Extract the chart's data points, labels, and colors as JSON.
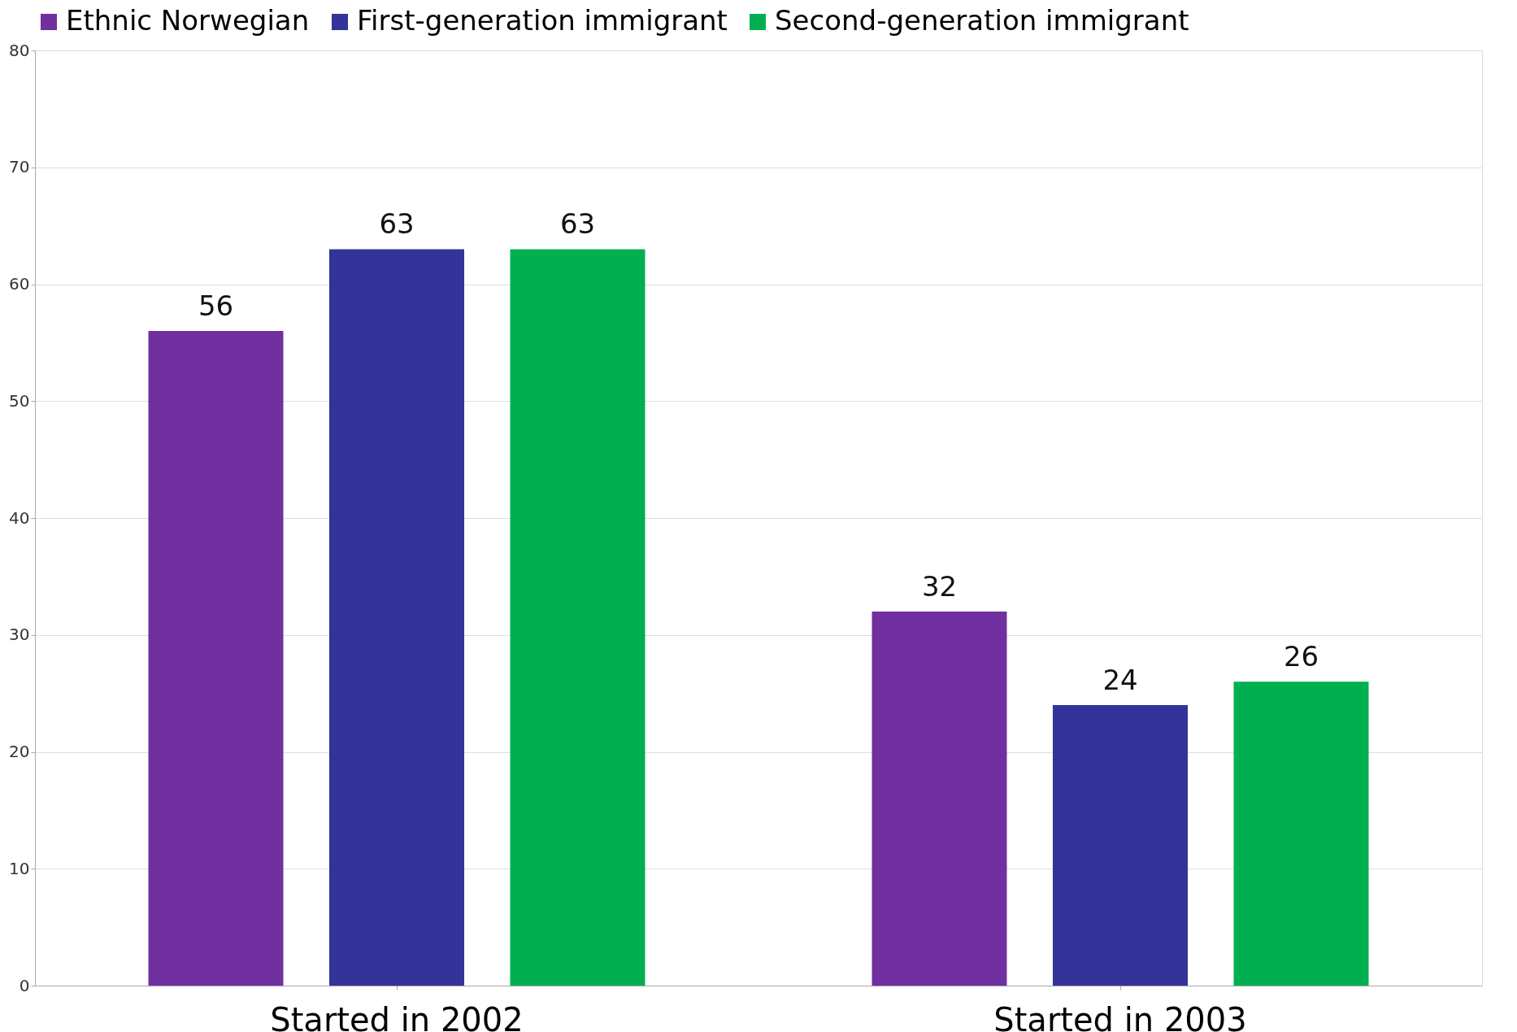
{
  "chart_data": {
    "type": "bar",
    "categories": [
      "Started in 2002",
      "Started in 2003"
    ],
    "series": [
      {
        "name": "Ethnic Norwegian",
        "color": "#7030a0",
        "values": [
          56,
          32
        ]
      },
      {
        "name": "First-generation immigrant",
        "color": "#333399",
        "values": [
          63,
          24
        ]
      },
      {
        "name": "Second-generation immigrant",
        "color": "#00b050",
        "values": [
          63,
          26
        ]
      }
    ],
    "ylim": [
      0,
      80
    ],
    "yticks": [
      0,
      10,
      20,
      30,
      40,
      50,
      60,
      70,
      80
    ],
    "grid": "y",
    "legend": "top",
    "data_labels": true
  }
}
